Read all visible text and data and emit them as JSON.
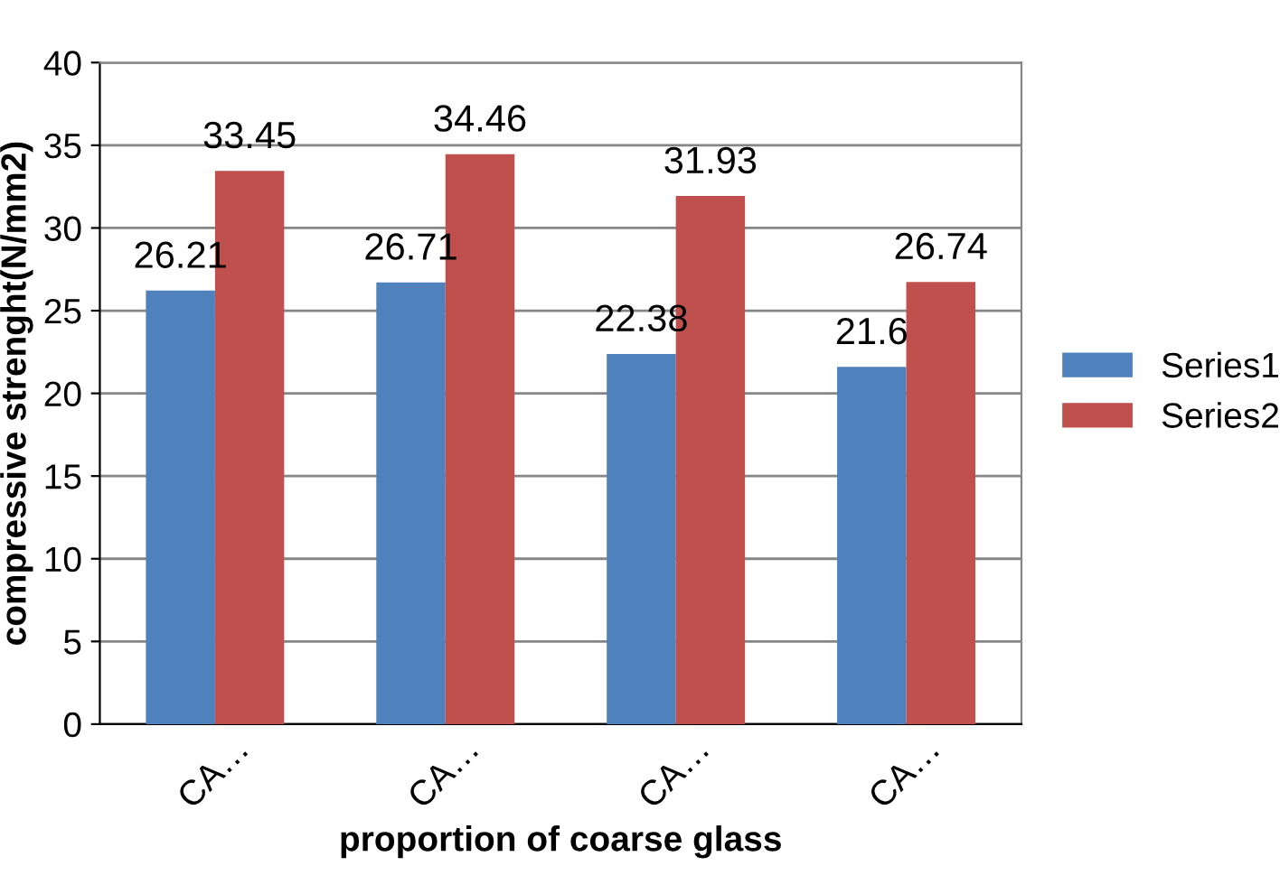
{
  "chart_data": {
    "type": "bar",
    "xlabel": "proportion of coarse glass",
    "ylabel": "compressive strenght(N/mm2)",
    "categories": [
      "CA…",
      "CA…",
      "CA…",
      "CA…"
    ],
    "series": [
      {
        "name": "Series1",
        "color": "#4f81bd",
        "values": [
          26.21,
          26.71,
          22.38,
          21.6
        ]
      },
      {
        "name": "Series2",
        "color": "#c0504d",
        "values": [
          33.45,
          34.46,
          31.93,
          26.74
        ]
      }
    ],
    "ylim": [
      0,
      40
    ],
    "yticks": [
      0,
      5,
      10,
      15,
      20,
      25,
      30,
      35,
      40
    ],
    "grid": "y",
    "legend": "right",
    "data_labels": true
  }
}
